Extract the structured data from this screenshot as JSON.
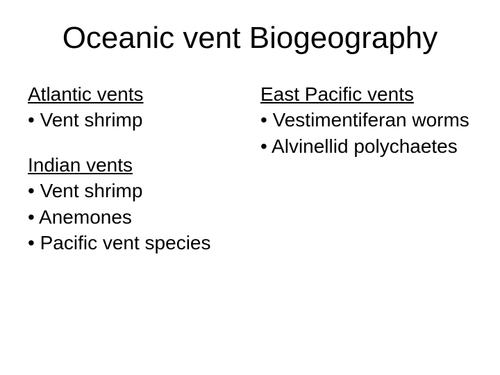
{
  "title": "Oceanic vent Biogeography",
  "left": {
    "sections": [
      {
        "heading": "Atlantic vents",
        "items": [
          "Vent shrimp"
        ]
      },
      {
        "heading": "Indian vents",
        "items": [
          "Vent shrimp",
          "Anemones",
          "Pacific vent species"
        ]
      }
    ]
  },
  "right": {
    "sections": [
      {
        "heading": "East Pacific vents",
        "items": [
          "Vestimentiferan worms",
          "Alvinellid polychaetes"
        ]
      }
    ]
  },
  "style": {
    "background_color": "#ffffff",
    "text_color": "#000000",
    "font_family": "Comic Sans MS",
    "title_fontsize": 44,
    "body_fontsize": 28
  }
}
